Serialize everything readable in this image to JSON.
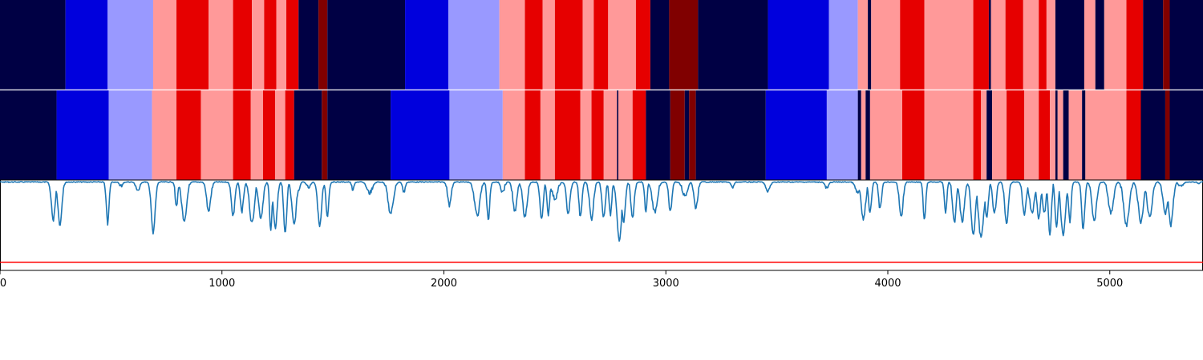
{
  "palette": {
    "navy": "#000044",
    "blue": "#0000dd",
    "lavender": "#9999ff",
    "pink": "#ff9999",
    "red": "#e60000",
    "darkred": "#800000",
    "signal": "#1f77b4",
    "threshold": "#ff0000"
  },
  "chart_data": [
    {
      "type": "segmentation-strip",
      "x_range": [
        0,
        5420
      ],
      "segments": [
        {
          "start": 0,
          "end": 295,
          "label": "navy"
        },
        {
          "start": 295,
          "end": 485,
          "label": "blue"
        },
        {
          "start": 485,
          "end": 690,
          "label": "lavender"
        },
        {
          "start": 690,
          "end": 795,
          "label": "pink"
        },
        {
          "start": 795,
          "end": 940,
          "label": "red"
        },
        {
          "start": 940,
          "end": 1050,
          "label": "pink"
        },
        {
          "start": 1050,
          "end": 1135,
          "label": "red"
        },
        {
          "start": 1135,
          "end": 1190,
          "label": "pink"
        },
        {
          "start": 1190,
          "end": 1245,
          "label": "red"
        },
        {
          "start": 1245,
          "end": 1290,
          "label": "pink"
        },
        {
          "start": 1290,
          "end": 1345,
          "label": "red"
        },
        {
          "start": 1345,
          "end": 1435,
          "label": "navy"
        },
        {
          "start": 1435,
          "end": 1475,
          "label": "darkred"
        },
        {
          "start": 1475,
          "end": 1825,
          "label": "navy"
        },
        {
          "start": 1825,
          "end": 2020,
          "label": "blue"
        },
        {
          "start": 2020,
          "end": 2250,
          "label": "lavender"
        },
        {
          "start": 2250,
          "end": 2365,
          "label": "pink"
        },
        {
          "start": 2365,
          "end": 2445,
          "label": "red"
        },
        {
          "start": 2445,
          "end": 2500,
          "label": "pink"
        },
        {
          "start": 2500,
          "end": 2625,
          "label": "red"
        },
        {
          "start": 2625,
          "end": 2675,
          "label": "pink"
        },
        {
          "start": 2675,
          "end": 2740,
          "label": "red"
        },
        {
          "start": 2740,
          "end": 2865,
          "label": "pink"
        },
        {
          "start": 2865,
          "end": 2930,
          "label": "red"
        },
        {
          "start": 2930,
          "end": 3015,
          "label": "navy"
        },
        {
          "start": 3015,
          "end": 3145,
          "label": "darkred"
        },
        {
          "start": 3145,
          "end": 3460,
          "label": "navy"
        },
        {
          "start": 3460,
          "end": 3735,
          "label": "blue"
        },
        {
          "start": 3735,
          "end": 3865,
          "label": "lavender"
        },
        {
          "start": 3865,
          "end": 3910,
          "label": "pink"
        },
        {
          "start": 3910,
          "end": 3925,
          "label": "navy"
        },
        {
          "start": 3925,
          "end": 4055,
          "label": "pink"
        },
        {
          "start": 4055,
          "end": 4165,
          "label": "red"
        },
        {
          "start": 4165,
          "end": 4385,
          "label": "pink"
        },
        {
          "start": 4385,
          "end": 4455,
          "label": "red"
        },
        {
          "start": 4455,
          "end": 4465,
          "label": "navy"
        },
        {
          "start": 4465,
          "end": 4530,
          "label": "pink"
        },
        {
          "start": 4530,
          "end": 4610,
          "label": "red"
        },
        {
          "start": 4610,
          "end": 4680,
          "label": "pink"
        },
        {
          "start": 4680,
          "end": 4715,
          "label": "red"
        },
        {
          "start": 4715,
          "end": 4755,
          "label": "pink"
        },
        {
          "start": 4755,
          "end": 4885,
          "label": "navy"
        },
        {
          "start": 4885,
          "end": 4935,
          "label": "pink"
        },
        {
          "start": 4935,
          "end": 4975,
          "label": "navy"
        },
        {
          "start": 4975,
          "end": 5075,
          "label": "pink"
        },
        {
          "start": 5075,
          "end": 5150,
          "label": "red"
        },
        {
          "start": 5150,
          "end": 5240,
          "label": "navy"
        },
        {
          "start": 5240,
          "end": 5270,
          "label": "darkred"
        },
        {
          "start": 5270,
          "end": 5420,
          "label": "navy"
        }
      ]
    },
    {
      "type": "segmentation-strip",
      "x_range": [
        0,
        5420
      ],
      "segments": [
        {
          "start": 0,
          "end": 255,
          "label": "navy"
        },
        {
          "start": 255,
          "end": 490,
          "label": "blue"
        },
        {
          "start": 490,
          "end": 685,
          "label": "lavender"
        },
        {
          "start": 685,
          "end": 795,
          "label": "pink"
        },
        {
          "start": 795,
          "end": 905,
          "label": "red"
        },
        {
          "start": 905,
          "end": 1050,
          "label": "pink"
        },
        {
          "start": 1050,
          "end": 1130,
          "label": "red"
        },
        {
          "start": 1130,
          "end": 1185,
          "label": "pink"
        },
        {
          "start": 1185,
          "end": 1240,
          "label": "red"
        },
        {
          "start": 1240,
          "end": 1285,
          "label": "pink"
        },
        {
          "start": 1285,
          "end": 1325,
          "label": "red"
        },
        {
          "start": 1325,
          "end": 1450,
          "label": "navy"
        },
        {
          "start": 1450,
          "end": 1475,
          "label": "darkred"
        },
        {
          "start": 1475,
          "end": 1760,
          "label": "navy"
        },
        {
          "start": 1760,
          "end": 2025,
          "label": "blue"
        },
        {
          "start": 2025,
          "end": 2265,
          "label": "lavender"
        },
        {
          "start": 2265,
          "end": 2365,
          "label": "pink"
        },
        {
          "start": 2365,
          "end": 2435,
          "label": "red"
        },
        {
          "start": 2435,
          "end": 2500,
          "label": "pink"
        },
        {
          "start": 2500,
          "end": 2615,
          "label": "red"
        },
        {
          "start": 2615,
          "end": 2665,
          "label": "pink"
        },
        {
          "start": 2665,
          "end": 2720,
          "label": "red"
        },
        {
          "start": 2720,
          "end": 2780,
          "label": "pink"
        },
        {
          "start": 2780,
          "end": 2786,
          "label": "navy"
        },
        {
          "start": 2786,
          "end": 2850,
          "label": "pink"
        },
        {
          "start": 2850,
          "end": 2910,
          "label": "red"
        },
        {
          "start": 2910,
          "end": 3020,
          "label": "navy"
        },
        {
          "start": 3020,
          "end": 3085,
          "label": "darkred"
        },
        {
          "start": 3085,
          "end": 3105,
          "label": "navy"
        },
        {
          "start": 3105,
          "end": 3135,
          "label": "darkred"
        },
        {
          "start": 3135,
          "end": 3450,
          "label": "navy"
        },
        {
          "start": 3450,
          "end": 3725,
          "label": "blue"
        },
        {
          "start": 3725,
          "end": 3865,
          "label": "lavender"
        },
        {
          "start": 3865,
          "end": 3880,
          "label": "navy"
        },
        {
          "start": 3880,
          "end": 3900,
          "label": "pink"
        },
        {
          "start": 3900,
          "end": 3920,
          "label": "navy"
        },
        {
          "start": 3920,
          "end": 4065,
          "label": "pink"
        },
        {
          "start": 4065,
          "end": 4165,
          "label": "red"
        },
        {
          "start": 4165,
          "end": 4385,
          "label": "pink"
        },
        {
          "start": 4385,
          "end": 4420,
          "label": "red"
        },
        {
          "start": 4420,
          "end": 4445,
          "label": "pink"
        },
        {
          "start": 4445,
          "end": 4470,
          "label": "navy"
        },
        {
          "start": 4470,
          "end": 4535,
          "label": "pink"
        },
        {
          "start": 4535,
          "end": 4615,
          "label": "red"
        },
        {
          "start": 4615,
          "end": 4680,
          "label": "pink"
        },
        {
          "start": 4680,
          "end": 4730,
          "label": "red"
        },
        {
          "start": 4730,
          "end": 4755,
          "label": "pink"
        },
        {
          "start": 4755,
          "end": 4765,
          "label": "navy"
        },
        {
          "start": 4765,
          "end": 4790,
          "label": "pink"
        },
        {
          "start": 4790,
          "end": 4815,
          "label": "navy"
        },
        {
          "start": 4815,
          "end": 4875,
          "label": "pink"
        },
        {
          "start": 4875,
          "end": 4890,
          "label": "navy"
        },
        {
          "start": 4890,
          "end": 5075,
          "label": "pink"
        },
        {
          "start": 5075,
          "end": 5140,
          "label": "red"
        },
        {
          "start": 5140,
          "end": 5250,
          "label": "navy"
        },
        {
          "start": 5250,
          "end": 5270,
          "label": "darkred"
        },
        {
          "start": 5270,
          "end": 5420,
          "label": "navy"
        }
      ]
    },
    {
      "type": "line",
      "x_range": [
        0,
        5420
      ],
      "y_range": [
        -0.1,
        1.0
      ],
      "threshold": 0.0,
      "x_ticks": [
        0,
        1000,
        2000,
        3000,
        4000,
        5000
      ],
      "tick_labels": [
        "0",
        "1000",
        "2000",
        "3000",
        "4000",
        "5000"
      ],
      "baseline": 0.99,
      "dips": [
        [
          240,
          0.52
        ],
        [
          270,
          0.45
        ],
        [
          485,
          0.48
        ],
        [
          545,
          0.93
        ],
        [
          620,
          0.88
        ],
        [
          690,
          0.37
        ],
        [
          795,
          0.69
        ],
        [
          830,
          0.52
        ],
        [
          940,
          0.63
        ],
        [
          1050,
          0.57
        ],
        [
          1090,
          0.63
        ],
        [
          1135,
          0.48
        ],
        [
          1175,
          0.55
        ],
        [
          1220,
          0.4
        ],
        [
          1240,
          0.42
        ],
        [
          1285,
          0.34
        ],
        [
          1325,
          0.46
        ],
        [
          1345,
          0.88
        ],
        [
          1390,
          0.93
        ],
        [
          1440,
          0.45
        ],
        [
          1475,
          0.55
        ],
        [
          1590,
          0.9
        ],
        [
          1665,
          0.85
        ],
        [
          1760,
          0.6
        ],
        [
          1820,
          0.86
        ],
        [
          2025,
          0.7
        ],
        [
          2150,
          0.57
        ],
        [
          2200,
          0.53
        ],
        [
          2265,
          0.86
        ],
        [
          2320,
          0.62
        ],
        [
          2365,
          0.56
        ],
        [
          2440,
          0.52
        ],
        [
          2470,
          0.59
        ],
        [
          2500,
          0.78
        ],
        [
          2560,
          0.6
        ],
        [
          2615,
          0.55
        ],
        [
          2665,
          0.53
        ],
        [
          2720,
          0.55
        ],
        [
          2750,
          0.58
        ],
        [
          2790,
          0.28
        ],
        [
          2810,
          0.5
        ],
        [
          2850,
          0.55
        ],
        [
          2910,
          0.62
        ],
        [
          2950,
          0.62
        ],
        [
          3020,
          0.62
        ],
        [
          3085,
          0.82
        ],
        [
          3135,
          0.67
        ],
        [
          3300,
          0.93
        ],
        [
          3460,
          0.88
        ],
        [
          3725,
          0.92
        ],
        [
          3865,
          0.86
        ],
        [
          3890,
          0.53
        ],
        [
          3920,
          0.6
        ],
        [
          3965,
          0.65
        ],
        [
          4060,
          0.55
        ],
        [
          4165,
          0.52
        ],
        [
          4260,
          0.6
        ],
        [
          4300,
          0.48
        ],
        [
          4335,
          0.5
        ],
        [
          4385,
          0.35
        ],
        [
          4420,
          0.3
        ],
        [
          4445,
          0.55
        ],
        [
          4480,
          0.6
        ],
        [
          4535,
          0.49
        ],
        [
          4615,
          0.57
        ],
        [
          4650,
          0.62
        ],
        [
          4680,
          0.55
        ],
        [
          4705,
          0.61
        ],
        [
          4730,
          0.34
        ],
        [
          4760,
          0.45
        ],
        [
          4790,
          0.35
        ],
        [
          4820,
          0.5
        ],
        [
          4880,
          0.4
        ],
        [
          4930,
          0.52
        ],
        [
          5005,
          0.6
        ],
        [
          5075,
          0.45
        ],
        [
          5140,
          0.5
        ],
        [
          5180,
          0.55
        ],
        [
          5250,
          0.6
        ],
        [
          5275,
          0.45
        ],
        [
          5320,
          0.92
        ],
        [
          5400,
          0.97
        ]
      ]
    }
  ]
}
